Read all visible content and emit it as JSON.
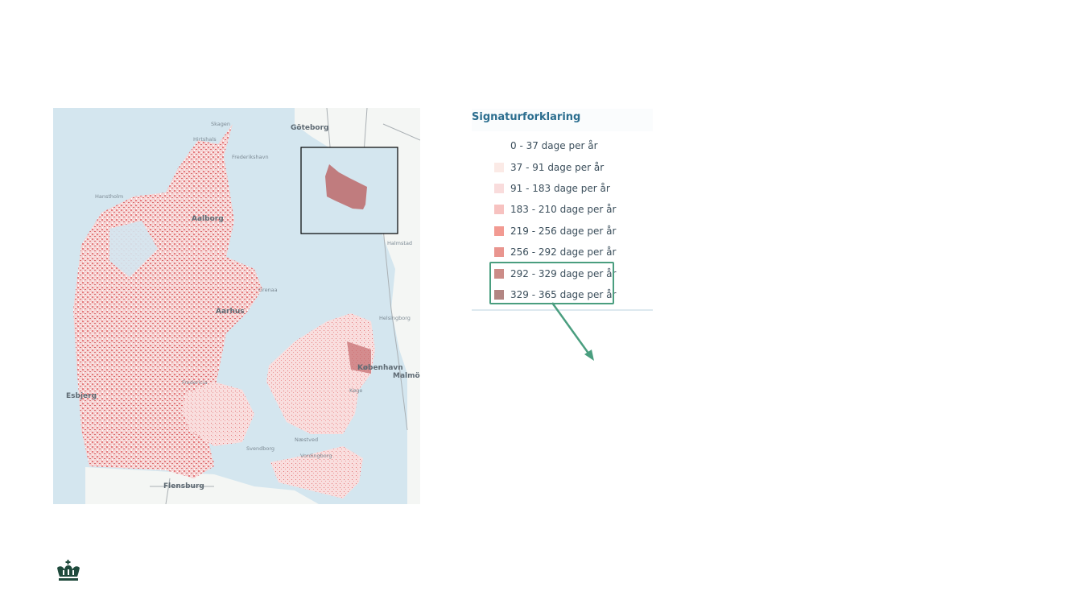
{
  "map": {
    "labels": {
      "skagen": "Skagen",
      "goteborg": "Göteborg",
      "hirtshals": "Hirtshals",
      "frederikshavn": "Frederikshavn",
      "hanstholm": "Hanstholm",
      "aalborg": "Aalborg",
      "grenaa": "Grenaa",
      "halmstad": "Halmstad",
      "aarhus": "Aarhus",
      "kobenhavn": "København",
      "malmo": "Malmö",
      "esbjerg": "Esbjerg",
      "fredericia": "Fredericia",
      "svendborg": "Svendborg",
      "flensburg": "Flensburg",
      "koge": "Køge",
      "naestved": "Næstved",
      "vordingborg": "Vordingborg",
      "helsingborg": "Helsingborg"
    },
    "colors": {
      "sea": "#d4e6ef",
      "land": "#ffffff",
      "data": "#e8898b"
    }
  },
  "legend": {
    "title": "Signaturforklaring",
    "items": [
      {
        "label": "0 - 37 dage per år",
        "color": "#ffffff"
      },
      {
        "label": "37 - 91 dage per år",
        "color": "#fbeae6"
      },
      {
        "label": "91 - 183 dage per år",
        "color": "#f9dcdc"
      },
      {
        "label": "183 - 210 dage per år",
        "color": "#f7c2c0"
      },
      {
        "label": "219 - 256 dage per år",
        "color": "#f29a92"
      },
      {
        "label": "256 - 292 dage per år",
        "color": "#e9958f"
      },
      {
        "label": "292 - 329 dage per år",
        "color": "#cc8c88"
      },
      {
        "label": "329 - 365 dage per år",
        "color": "#b38683"
      }
    ],
    "highlight_color": "#4a9e7f"
  },
  "footer": {
    "logo": "crown-logo"
  }
}
